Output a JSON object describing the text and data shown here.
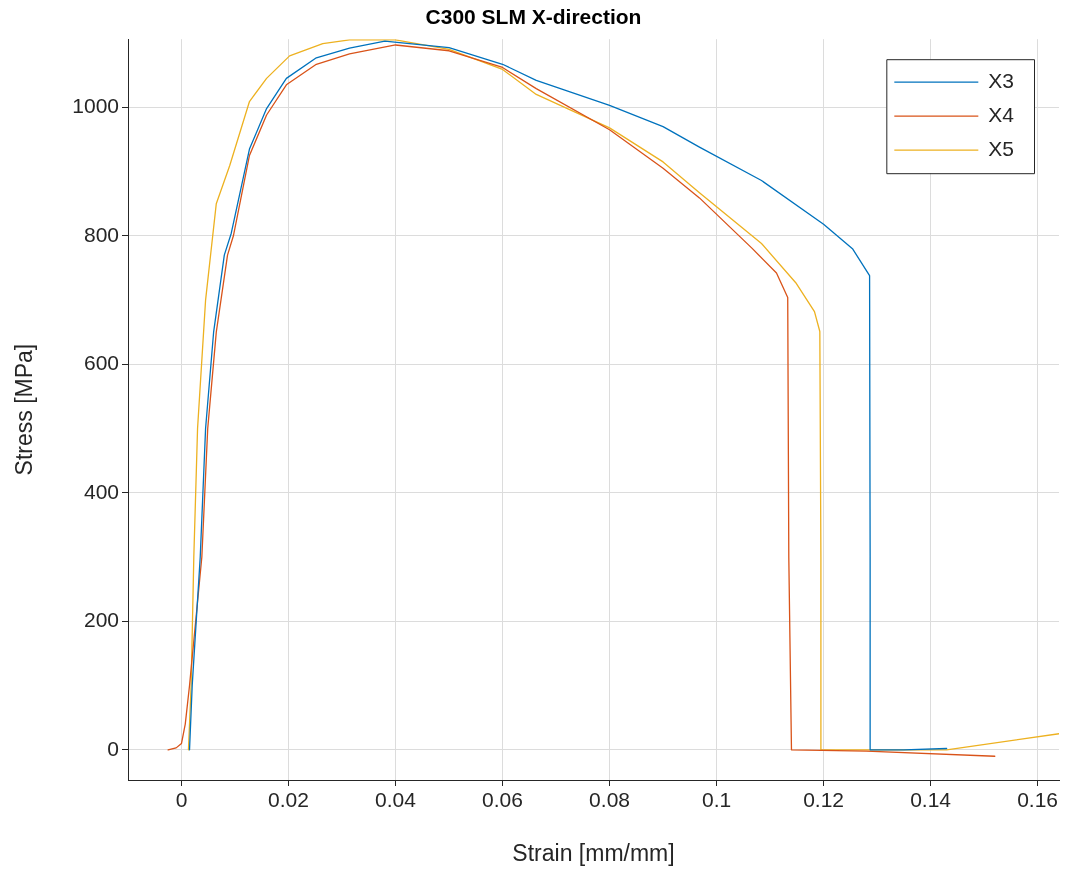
{
  "chart_data": {
    "type": "line",
    "title": "C300 SLM X-direction",
    "xlabel": "Strain [mm/mm]",
    "ylabel": "Stress [MPa]",
    "xlim": [
      -0.01,
      0.164
    ],
    "xticks": [
      0,
      0.02,
      0.04,
      0.06,
      0.08,
      0.1,
      0.12,
      0.14,
      0.16
    ],
    "ylim": [
      -47,
      1106
    ],
    "yticks": [
      0,
      200,
      400,
      600,
      800,
      1000
    ],
    "grid": true,
    "legend": "top right",
    "marker": "none",
    "line_style": "solid",
    "series": [
      {
        "name": "X3",
        "color": "#0072bd",
        "x": [
          0.0015,
          0.002,
          0.0035,
          0.0045,
          0.006,
          0.008,
          0.0093,
          0.0127,
          0.0159,
          0.0196,
          0.0252,
          0.0314,
          0.038,
          0.05,
          0.06,
          0.0663,
          0.08,
          0.09,
          0.0968,
          0.1084,
          0.12,
          0.1254,
          0.1286,
          0.1287,
          0.1287,
          0.135,
          0.143
        ],
        "values": [
          0,
          100,
          300,
          500,
          650,
          770,
          804,
          935,
          998,
          1045,
          1077,
          1092,
          1103,
          1093,
          1067,
          1042,
          1003,
          970,
          938,
          886,
          818,
          780,
          738,
          300,
          0,
          0,
          2
        ]
      },
      {
        "name": "X4",
        "color": "#d95319",
        "x": [
          -0.0025,
          -0.001,
          0,
          0.0007,
          0.0015,
          0.0038,
          0.0049,
          0.0065,
          0.0086,
          0.0097,
          0.0127,
          0.0159,
          0.0196,
          0.0252,
          0.0314,
          0.04,
          0.05,
          0.06,
          0.0663,
          0.08,
          0.09,
          0.0968,
          0.1067,
          0.1112,
          0.1133,
          0.1135,
          0.114,
          0.128,
          0.152
        ],
        "values": [
          0,
          3,
          10,
          40,
          100,
          300,
          500,
          650,
          770,
          800,
          925,
          988,
          1035,
          1067,
          1083,
          1097,
          1088,
          1062,
          1029,
          965,
          905,
          859,
          780,
          742,
          704,
          300,
          0,
          -2,
          -10
        ]
      },
      {
        "name": "X5",
        "color": "#edb120",
        "x": [
          0.0013,
          0.0018,
          0.0023,
          0.003,
          0.0045,
          0.0065,
          0.009,
          0.0127,
          0.0159,
          0.0202,
          0.0264,
          0.0314,
          0.04,
          0.05,
          0.06,
          0.0663,
          0.08,
          0.09,
          0.0968,
          0.1084,
          0.1148,
          0.1183,
          0.1193,
          0.1195,
          0.1195,
          0.13,
          0.143,
          0.164
        ],
        "values": [
          0,
          100,
          300,
          500,
          700,
          850,
          909,
          1009,
          1045,
          1080,
          1099,
          1105,
          1105,
          1090,
          1059,
          1020,
          968,
          915,
          867,
          788,
          727,
          682,
          651,
          300,
          0,
          0,
          0,
          25
        ]
      }
    ]
  }
}
